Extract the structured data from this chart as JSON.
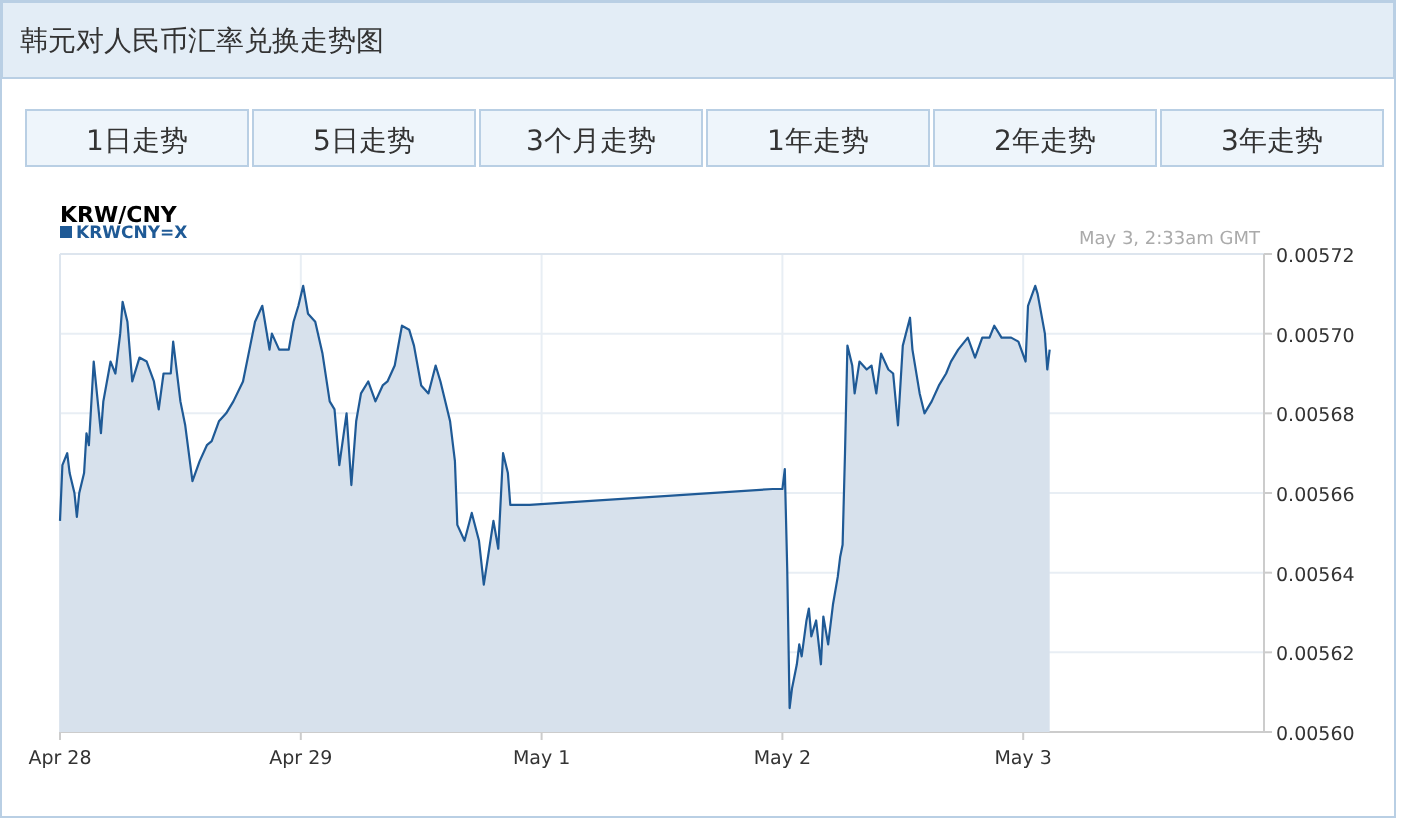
{
  "chart_data": {
    "type": "area",
    "title": "韩元对人民币汇率兑换走势图",
    "subtitle": "KRW/CNY",
    "annotations": [
      "1日走势",
      "5日走势",
      "3个月走势",
      "1年走势",
      "2年走势",
      "3年走势",
      "May 3, 2:33am GMT"
    ],
    "categories": [
      "Apr 28",
      null,
      null,
      null,
      null,
      null,
      null,
      null,
      null,
      null,
      null,
      null,
      null,
      null,
      null,
      null,
      null,
      null,
      null,
      null,
      null,
      null,
      null,
      null,
      null,
      null,
      null,
      null,
      null,
      null,
      null,
      null,
      null,
      null,
      null,
      null,
      null,
      null,
      null,
      null,
      null,
      null,
      null,
      null,
      null,
      null,
      null,
      null,
      null,
      null,
      null,
      null,
      null,
      null,
      null,
      null,
      null,
      null,
      null,
      null,
      null,
      null,
      null,
      null,
      null,
      null,
      null,
      null,
      null,
      null,
      null,
      null,
      null,
      null,
      null,
      null,
      null,
      null,
      null,
      null,
      null,
      null,
      null,
      null,
      null,
      null,
      null,
      null,
      null,
      null,
      null,
      null,
      null,
      null,
      null,
      null,
      null,
      null,
      null,
      null,
      "Apr 29",
      null,
      null,
      null,
      null,
      null,
      null,
      null,
      null,
      null,
      null,
      null,
      null,
      null,
      null,
      null,
      null,
      null,
      null,
      null,
      null,
      null,
      null,
      null,
      null,
      null,
      null,
      null,
      null,
      null,
      null,
      null,
      null,
      null,
      null,
      null,
      null,
      null,
      null,
      null,
      null,
      null,
      null,
      null,
      null,
      null,
      null,
      null,
      null,
      null,
      null,
      null,
      null,
      null,
      null,
      null,
      null,
      null,
      null,
      null,
      null,
      null,
      null,
      null,
      null,
      null,
      null,
      null,
      null,
      null,
      null,
      null,
      null,
      null,
      null,
      null,
      null,
      null,
      null,
      null,
      null,
      null,
      null,
      null,
      null,
      null,
      null,
      null,
      null,
      null,
      null,
      null,
      null,
      null,
      null,
      null,
      null,
      null,
      null,
      null,
      "May 1",
      null,
      null,
      null,
      null,
      null,
      null,
      null,
      null,
      null,
      null,
      null,
      null,
      null,
      null,
      null,
      null,
      null,
      null,
      null,
      null,
      null,
      null,
      null,
      null,
      null,
      null,
      null,
      null,
      null,
      null,
      null,
      null,
      null,
      null,
      null,
      null,
      null,
      null,
      null,
      null,
      null,
      null,
      null,
      null,
      null,
      null,
      null,
      null,
      null,
      null,
      null,
      null,
      null,
      null,
      null,
      null,
      null,
      null,
      null,
      null,
      null,
      null,
      null,
      null,
      null,
      null,
      null,
      null,
      null,
      null,
      null,
      null,
      null,
      null,
      null,
      null,
      null,
      null,
      null,
      null,
      null,
      null,
      null,
      null,
      null,
      null,
      null,
      null,
      null,
      null,
      null,
      null,
      null,
      null,
      null,
      null,
      null,
      null,
      null,
      "May 2",
      null,
      null,
      null,
      null,
      null,
      null,
      null,
      null,
      null,
      null,
      null,
      null,
      null,
      null,
      null,
      null,
      null,
      null,
      null,
      null,
      null,
      null,
      null,
      null,
      null,
      null,
      null,
      null,
      null,
      null,
      null,
      null,
      null,
      null,
      null,
      null,
      null,
      null,
      null,
      null,
      null,
      null,
      null,
      null,
      null,
      null,
      null,
      null,
      null,
      null,
      null,
      null,
      null,
      null,
      null,
      null,
      null,
      null,
      null,
      null,
      null,
      null,
      null,
      null,
      null,
      null,
      null,
      null,
      null,
      null,
      null,
      null,
      null,
      null,
      null,
      null,
      null,
      null,
      null,
      null,
      null,
      null,
      null,
      null,
      null,
      null,
      null,
      null,
      null,
      null,
      null,
      null,
      null,
      null,
      null,
      null,
      null,
      null,
      null,
      "May 3",
      null,
      null,
      null,
      null,
      null,
      null,
      null,
      null,
      null,
      null,
      null,
      null,
      null,
      null,
      null,
      null,
      null,
      null,
      null,
      null,
      null,
      null,
      null,
      null,
      null,
      null,
      null,
      null,
      null,
      null,
      null,
      null,
      null,
      null,
      null,
      null,
      null,
      null,
      null,
      null,
      null,
      null,
      null,
      null,
      null,
      null,
      null,
      null,
      null,
      null,
      null,
      null,
      null,
      null,
      null,
      null,
      null,
      null,
      null,
      null,
      null,
      null,
      null,
      null,
      null,
      null,
      null,
      null,
      null,
      null,
      null,
      null,
      null,
      null,
      null,
      null,
      null,
      null,
      null,
      null,
      null,
      null,
      null,
      null,
      null,
      null,
      null,
      null,
      null,
      null,
      null,
      null,
      null,
      null,
      null,
      null,
      null,
      null,
      null
    ],
    "series": [
      {
        "name": "KRWCNY=X",
        "color": "#1f5a96",
        "values": [
          0.005653,
          0.005667,
          null,
          0.00567,
          0.005665,
          null,
          0.00566,
          0.005654,
          0.00566,
          null,
          0.005665,
          0.005675,
          0.005672,
          null,
          0.005693,
          null,
          null,
          0.005675,
          0.005683,
          null,
          null,
          0.005693,
          null,
          0.00569,
          null,
          0.0057,
          0.005708,
          null,
          0.005703,
          null,
          0.005688,
          null,
          null,
          0.005694,
          null,
          null,
          0.005693,
          null,
          null,
          0.005688,
          null,
          0.005681,
          null,
          0.00569,
          null,
          null,
          0.00569,
          0.005698,
          null,
          null,
          0.005683,
          null,
          0.005677,
          null,
          null,
          0.005663,
          null,
          null,
          0.005668,
          null,
          null,
          0.005672,
          null,
          0.005673,
          null,
          null,
          0.005678,
          null,
          null,
          0.00568,
          null,
          null,
          0.005683,
          null,
          null,
          null,
          0.005688,
          null,
          null,
          0.005697,
          null,
          0.005703,
          null,
          null,
          0.005707,
          null,
          null,
          0.005696,
          0.0057,
          null,
          null,
          0.005696,
          null,
          null,
          null,
          0.005696,
          null,
          0.005703,
          null,
          0.005707,
          null,
          0.005712,
          null,
          0.005705,
          null,
          null,
          0.005703,
          null,
          null,
          0.005695,
          null,
          null,
          0.005683,
          null,
          0.005681,
          null,
          0.005667,
          null,
          null,
          0.00568,
          null,
          0.005662,
          null,
          0.005678,
          null,
          0.005685,
          null,
          null,
          0.005688,
          null,
          null,
          0.005683,
          null,
          null,
          0.005687,
          null,
          0.005688,
          null,
          null,
          0.005692,
          null,
          null,
          0.005702,
          null,
          null,
          0.005701,
          null,
          0.005697,
          null,
          null,
          0.005687,
          null,
          null,
          0.005685,
          null,
          null,
          0.005692,
          null,
          0.005688,
          null,
          null,
          null,
          0.005678,
          null,
          0.005668,
          0.005652,
          null,
          null,
          0.005648,
          null,
          null,
          0.005655,
          null,
          null,
          0.005648,
          null,
          0.005637,
          null,
          0.005645,
          null,
          0.005653,
          null,
          0.005646,
          null,
          0.00567,
          null,
          0.005665,
          0.005657,
          null,
          null,
          null,
          null,
          null,
          null,
          null,
          0.005657,
          null,
          null,
          null,
          null,
          null,
          null,
          null,
          null,
          null,
          null,
          null,
          null,
          null,
          null,
          null,
          null,
          null,
          null,
          null,
          null,
          null,
          null,
          null,
          null,
          null,
          null,
          null,
          null,
          null,
          null,
          null,
          null,
          null,
          null,
          null,
          null,
          null,
          null,
          null,
          null,
          null,
          null,
          null,
          null,
          null,
          null,
          null,
          null,
          null,
          null,
          null,
          null,
          null,
          null,
          null,
          null,
          null,
          null,
          null,
          null,
          null,
          null,
          null,
          null,
          null,
          null,
          null,
          null,
          null,
          null,
          null,
          null,
          null,
          null,
          null,
          null,
          null,
          null,
          null,
          null,
          null,
          null,
          null,
          null,
          null,
          null,
          null,
          null,
          null,
          null,
          null,
          null,
          null,
          null,
          null,
          null,
          null,
          null,
          null,
          null,
          0.005661,
          null,
          null,
          0.005661,
          0.005661,
          0.005666,
          0.005641,
          0.005606,
          0.005611,
          null,
          0.005617,
          0.005622,
          0.005619,
          null,
          0.005628,
          0.005631,
          0.005624,
          null,
          0.005628,
          null,
          0.005617,
          0.005629,
          null,
          0.005622,
          null,
          0.005632,
          null,
          0.005639,
          0.005644,
          0.005647,
          0.00567,
          0.005697,
          null,
          0.005692,
          0.005685,
          null,
          0.005693,
          null,
          null,
          0.005691,
          null,
          0.005692,
          null,
          0.005685,
          null,
          0.005695,
          null,
          null,
          0.005691,
          null,
          0.00569,
          null,
          0.005677,
          null,
          0.005697,
          null,
          null,
          0.005704,
          0.005696,
          null,
          null,
          0.005685,
          null,
          0.00568,
          null,
          null,
          0.005683,
          null,
          null,
          0.005687,
          null,
          null,
          0.00569,
          null,
          0.005693,
          null,
          null,
          0.005696,
          null,
          null,
          null,
          0.005699,
          null,
          null,
          0.005694,
          null,
          null,
          0.005699,
          null,
          null,
          0.005699,
          null,
          0.005702,
          null,
          null,
          0.005699,
          null,
          null,
          null,
          0.005699,
          null,
          null,
          0.005698,
          null,
          null,
          0.005693,
          0.005707,
          null,
          null,
          0.005712,
          0.00571,
          null,
          null,
          0.0057,
          0.005691,
          0.005696,
          null,
          null,
          null,
          null,
          null,
          null,
          null,
          null,
          null,
          null,
          null,
          null,
          null,
          null,
          null,
          null,
          null,
          null,
          null,
          null,
          null,
          null,
          null,
          null,
          null,
          null,
          null,
          null,
          null,
          null,
          null,
          null,
          null,
          null,
          null,
          null,
          null,
          null,
          null,
          null,
          null,
          null,
          null,
          null,
          null,
          null,
          null,
          null,
          null,
          null,
          null,
          null,
          null,
          null,
          null,
          null,
          null,
          null,
          null,
          null,
          null,
          null,
          null,
          null,
          null,
          null,
          null,
          null,
          null,
          null,
          null,
          null,
          null,
          null,
          null,
          null,
          null,
          null,
          null,
          null,
          null,
          null,
          null,
          null,
          null,
          null,
          null,
          null
        ]
      }
    ],
    "ylim": [
      0.0056,
      0.00572
    ],
    "yticks": [
      {
        "value": 0.0056,
        "label": "0.00560"
      },
      {
        "value": 0.00562,
        "label": "0.00562"
      },
      {
        "value": 0.00564,
        "label": "0.00564"
      },
      {
        "value": 0.00566,
        "label": "0.00566"
      },
      {
        "value": 0.00568,
        "label": "0.00568"
      },
      {
        "value": 0.0057,
        "label": "0.00570"
      },
      {
        "value": 0.00572,
        "label": "0.00572"
      }
    ],
    "grid": true,
    "legend": "top left"
  }
}
